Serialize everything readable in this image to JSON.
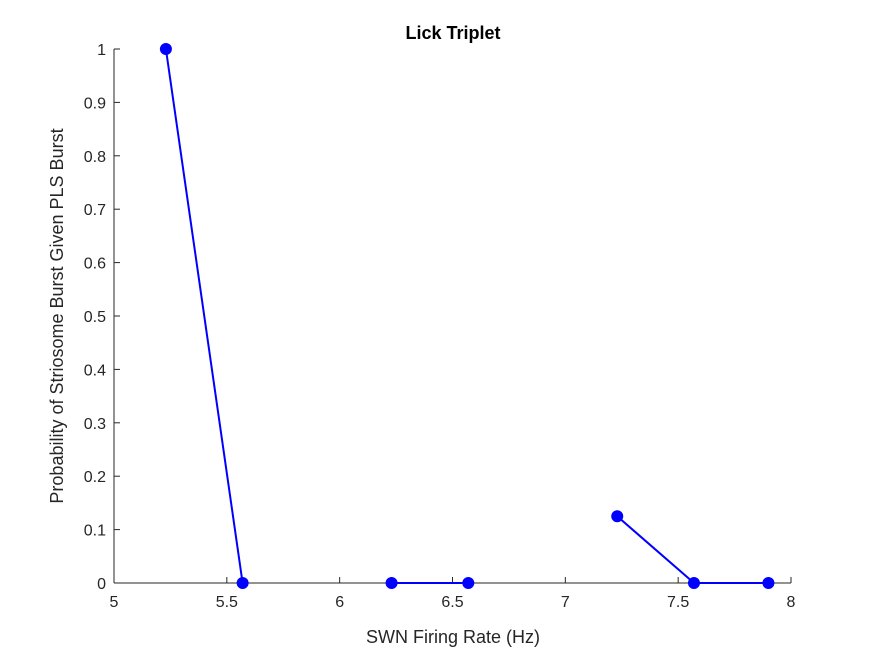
{
  "chart_data": {
    "type": "line",
    "title": "Lick Triplet",
    "xlabel": "SWN Firing Rate (Hz)",
    "ylabel": "Probability of Striosome Burst Given PLS Burst",
    "xlim": [
      5,
      8
    ],
    "ylim": [
      0,
      1
    ],
    "xticks": [
      "5",
      "5.5",
      "6",
      "6.5",
      "7",
      "7.5",
      "8"
    ],
    "yticks": [
      "0",
      "0.1",
      "0.2",
      "0.3",
      "0.4",
      "0.5",
      "0.6",
      "0.7",
      "0.8",
      "0.9",
      "1"
    ],
    "grid": false,
    "legend": "none",
    "color": "#0000ff",
    "segments": [
      {
        "x": [
          5.23,
          5.57
        ],
        "y": [
          1.0,
          0.0
        ]
      },
      {
        "x": [
          6.23,
          6.57
        ],
        "y": [
          0.0,
          0.0
        ]
      },
      {
        "x": [
          7.23,
          7.57,
          7.9
        ],
        "y": [
          0.125,
          0.0,
          0.0
        ]
      }
    ]
  }
}
